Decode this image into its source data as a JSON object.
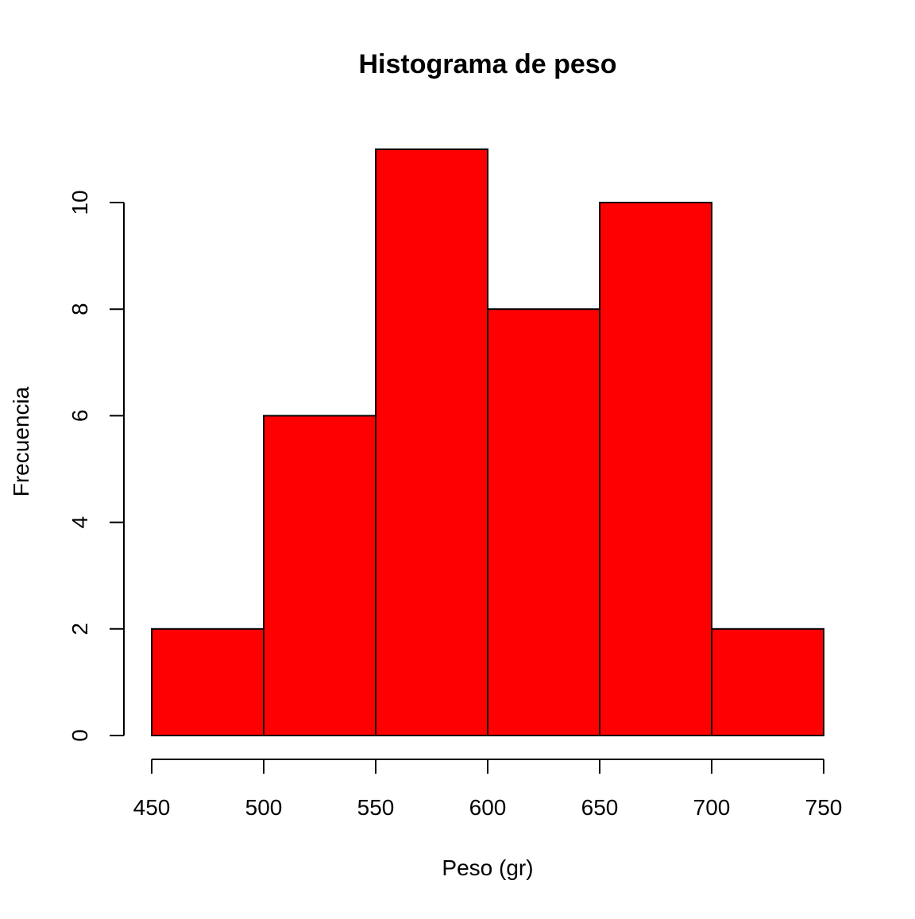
{
  "chart_data": {
    "type": "bar",
    "title": "Histograma de peso",
    "xlabel": "Peso (gr)",
    "ylabel": "Frecuencia",
    "bins": [
      {
        "start": 450,
        "end": 500,
        "count": 2
      },
      {
        "start": 500,
        "end": 550,
        "count": 6
      },
      {
        "start": 550,
        "end": 600,
        "count": 11
      },
      {
        "start": 600,
        "end": 650,
        "count": 8
      },
      {
        "start": 650,
        "end": 700,
        "count": 10
      },
      {
        "start": 700,
        "end": 750,
        "count": 2
      }
    ],
    "xlim": [
      450,
      750
    ],
    "ylim": [
      0,
      11
    ],
    "x_ticks": [
      "450",
      "500",
      "550",
      "600",
      "650",
      "700",
      "750"
    ],
    "y_ticks": [
      "0",
      "2",
      "4",
      "6",
      "8",
      "10"
    ],
    "grid": false,
    "colors": {
      "bar_fill": "#ff0000",
      "bar_stroke": "#000000"
    }
  }
}
